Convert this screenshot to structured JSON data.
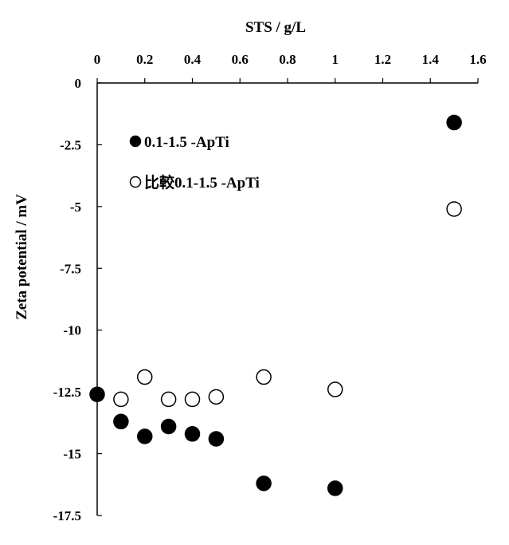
{
  "chart_data": {
    "type": "scatter",
    "xlabel": "STS / g/L",
    "ylabel": "Zeta potential / mV",
    "x_axis_position": "top",
    "xlim": [
      0,
      1.6
    ],
    "ylim": [
      -17.5,
      0
    ],
    "x_ticks": [
      "0",
      "0.2",
      "0.4",
      "0.6",
      "0.8",
      "1",
      "1.2",
      "1.4",
      "1.6"
    ],
    "y_ticks": [
      "0",
      "-2.5",
      "-5",
      "-7.5",
      "-10",
      "-12.5",
      "-15",
      "-17.5"
    ],
    "grid": false,
    "legend_position": "top-left",
    "series": [
      {
        "name": "0.1-1.5 -ApTi",
        "marker": "filled-circle",
        "color": "#000000",
        "points": [
          {
            "x": 0,
            "y": -12.6
          },
          {
            "x": 0.1,
            "y": -13.7
          },
          {
            "x": 0.2,
            "y": -14.3
          },
          {
            "x": 0.3,
            "y": -13.9
          },
          {
            "x": 0.4,
            "y": -14.2
          },
          {
            "x": 0.5,
            "y": -14.4
          },
          {
            "x": 0.7,
            "y": -16.2
          },
          {
            "x": 1.0,
            "y": -16.4
          },
          {
            "x": 1.5,
            "y": -1.6
          }
        ]
      },
      {
        "name": "比較0.1-1.5 -ApTi",
        "marker": "open-circle",
        "color": "#000000",
        "points": [
          {
            "x": 0.1,
            "y": -12.8
          },
          {
            "x": 0.2,
            "y": -11.9
          },
          {
            "x": 0.3,
            "y": -12.8
          },
          {
            "x": 0.4,
            "y": -12.8
          },
          {
            "x": 0.5,
            "y": -12.7
          },
          {
            "x": 0.7,
            "y": -11.9
          },
          {
            "x": 1.0,
            "y": -12.4
          },
          {
            "x": 1.5,
            "y": -5.1
          }
        ]
      }
    ]
  }
}
